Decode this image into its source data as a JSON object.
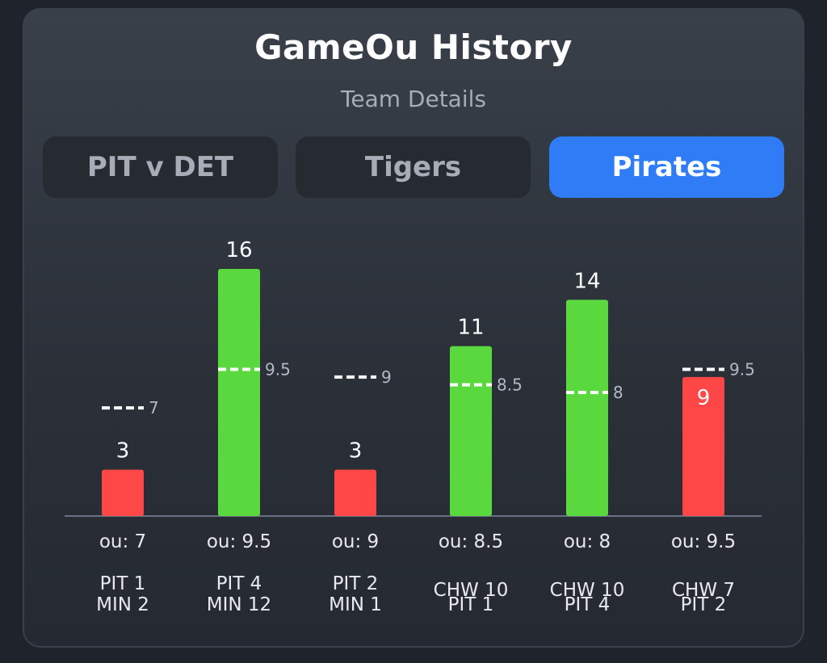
{
  "header": {
    "title": "GameOu History",
    "subtitle": "Team Details"
  },
  "tabs": [
    {
      "label": "PIT v DET",
      "active": false
    },
    {
      "label": "Tigers",
      "active": false
    },
    {
      "label": "Pirates",
      "active": true
    }
  ],
  "colors": {
    "over": "#5ad93f",
    "under": "#ff4747",
    "active_tab": "#2f7cf6"
  },
  "chart_data": {
    "type": "bar",
    "title": "GameOu History",
    "ylim": [
      0,
      16
    ],
    "categories": [
      "PIT 1 MIN 2",
      "PIT 4 MIN 12",
      "PIT 2 MIN 1",
      "CHW 10 PIT 1",
      "CHW 10 PIT 4",
      "CHW 7 PIT 2"
    ],
    "games": [
      {
        "line1": "PIT 1",
        "line2": "MIN 2",
        "total": 3,
        "ou": 7,
        "ou_text": "7",
        "ou_label": "ou: 7",
        "result": "under"
      },
      {
        "line1": "PIT 4",
        "line2": "MIN 12",
        "total": 16,
        "ou": 9.5,
        "ou_text": "9.5",
        "ou_label": "ou: 9.5",
        "result": "over"
      },
      {
        "line1": "PIT 2",
        "line2": "MIN 1",
        "total": 3,
        "ou": 9,
        "ou_text": "9",
        "ou_label": "ou: 9",
        "result": "under"
      },
      {
        "line1": "CHW 10",
        "line2": "PIT 1",
        "total": 11,
        "ou": 8.5,
        "ou_text": "8.5",
        "ou_label": "ou: 8.5",
        "result": "over"
      },
      {
        "line1": "CHW 10",
        "line2": "PIT 4",
        "total": 14,
        "ou": 8,
        "ou_text": "8",
        "ou_label": "ou: 8",
        "result": "over"
      },
      {
        "line1": "CHW 7",
        "line2": "PIT 2",
        "total": 9,
        "ou": 9.5,
        "ou_text": "9.5",
        "ou_label": "ou: 9.5",
        "result": "under"
      }
    ]
  }
}
